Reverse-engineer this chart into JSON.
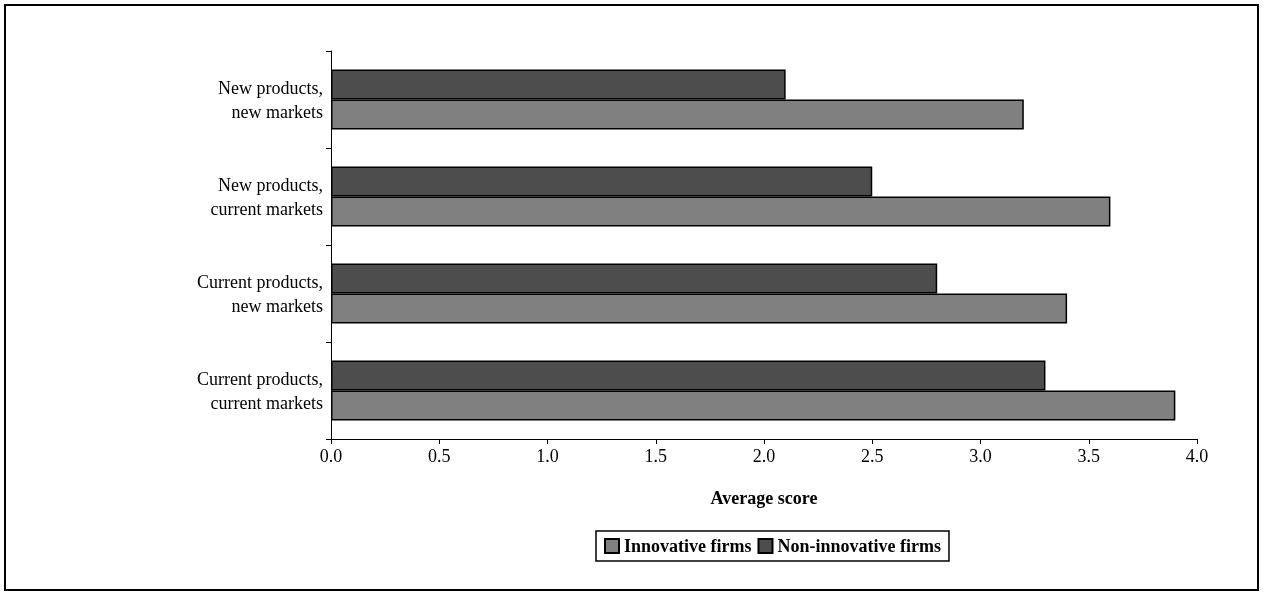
{
  "chart_data": {
    "type": "bar",
    "orientation": "horizontal",
    "xlabel": "Average score",
    "categories": [
      "New products, new markets",
      "New products, current markets",
      "Current products, new markets",
      "Current products, current markets"
    ],
    "series": [
      {
        "name": "Innovative firms",
        "color": "#808080",
        "values": [
          3.2,
          3.6,
          3.4,
          3.9
        ]
      },
      {
        "name": "Non-innovative firms",
        "color": "#4d4d4d",
        "values": [
          2.1,
          2.5,
          2.8,
          3.3
        ]
      }
    ],
    "xlim": [
      0,
      4
    ],
    "xticks": [
      {
        "value": 0,
        "label": "0.0"
      },
      {
        "value": 0.5,
        "label": "0.5"
      },
      {
        "value": 1,
        "label": "1.0"
      },
      {
        "value": 1.5,
        "label": "1.5"
      },
      {
        "value": 2,
        "label": "2.0"
      },
      {
        "value": 2.5,
        "label": "2.5"
      },
      {
        "value": 3,
        "label": "3.0"
      },
      {
        "value": 3.5,
        "label": "3.5"
      },
      {
        "value": 4,
        "label": "4.0"
      }
    ],
    "grid": false,
    "legend": "bottom"
  }
}
